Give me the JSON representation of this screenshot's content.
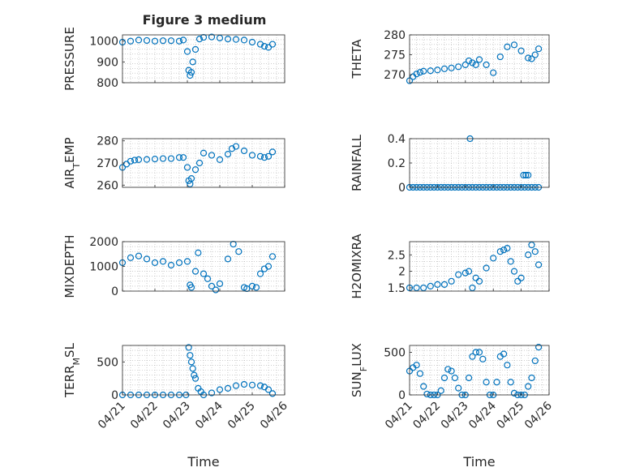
{
  "figure": {
    "title": "Figure 3 medium",
    "marker_color": "#0072BD",
    "axis_color": "#262626",
    "grid_color": "#b0b0b0"
  },
  "chart_data": [
    {
      "id": "pressure",
      "type": "scatter",
      "marker": "circle-open",
      "ylabel_parts": [
        "PRESSURE"
      ],
      "xlabel": "",
      "ylim": [
        800,
        1030
      ],
      "yticks": [
        800,
        900,
        1000
      ],
      "show_xticklabels": false,
      "title": "Figure 3 medium",
      "x": [
        "04/21 00:00",
        "04/21 06:00",
        "04/21 12:00",
        "04/21 18:00",
        "04/22 00:00",
        "04/22 06:00",
        "04/22 12:00",
        "04/22 18:00",
        "04/22 21:00",
        "04/23 00:00",
        "04/23 01:00",
        "04/23 02:00",
        "04/23 03:00",
        "04/23 04:00",
        "04/23 06:00",
        "04/23 09:00",
        "04/23 12:00",
        "04/23 18:00",
        "04/24 00:00",
        "04/24 06:00",
        "04/24 12:00",
        "04/24 18:00",
        "04/25 00:00",
        "04/25 06:00",
        "04/25 09:00",
        "04/25 12:00",
        "04/25 15:00"
      ],
      "y": [
        995,
        1000,
        1005,
        1003,
        1000,
        1002,
        1002,
        1000,
        1005,
        950,
        860,
        835,
        850,
        900,
        960,
        1010,
        1018,
        1020,
        1015,
        1010,
        1008,
        1005,
        995,
        985,
        975,
        970,
        985
      ]
    },
    {
      "id": "theta",
      "type": "scatter",
      "marker": "circle-open",
      "ylabel_parts": [
        "THETA"
      ],
      "xlabel": "",
      "ylim": [
        268,
        280
      ],
      "yticks": [
        270,
        275,
        280
      ],
      "show_xticklabels": false,
      "x": [
        "04/21 00:00",
        "04/21 03:00",
        "04/21 06:00",
        "04/21 09:00",
        "04/21 12:00",
        "04/21 18:00",
        "04/22 00:00",
        "04/22 06:00",
        "04/22 12:00",
        "04/22 18:00",
        "04/23 00:00",
        "04/23 03:00",
        "04/23 06:00",
        "04/23 09:00",
        "04/23 12:00",
        "04/23 18:00",
        "04/24 00:00",
        "04/24 06:00",
        "04/24 12:00",
        "04/24 18:00",
        "04/25 00:00",
        "04/25 06:00",
        "04/25 09:00",
        "04/25 12:00",
        "04/25 15:00"
      ],
      "y": [
        268.5,
        269.5,
        270.2,
        270.6,
        270.9,
        271.0,
        271.2,
        271.5,
        271.7,
        272.0,
        272.5,
        273.5,
        273.0,
        272.5,
        273.8,
        272.5,
        270.5,
        274.5,
        277.0,
        277.5,
        276.0,
        274.2,
        274.0,
        275.0,
        276.5
      ]
    },
    {
      "id": "air_temp",
      "type": "scatter",
      "marker": "circle-open",
      "ylabel_parts": [
        "AIR",
        "T",
        "EMP"
      ],
      "xlabel": "",
      "ylim": [
        259,
        281
      ],
      "yticks": [
        260,
        270,
        280
      ],
      "show_xticklabels": false,
      "x": [
        "04/21 00:00",
        "04/21 03:00",
        "04/21 06:00",
        "04/21 09:00",
        "04/21 12:00",
        "04/21 18:00",
        "04/22 00:00",
        "04/22 06:00",
        "04/22 12:00",
        "04/22 18:00",
        "04/22 21:00",
        "04/23 00:00",
        "04/23 01:00",
        "04/23 02:00",
        "04/23 03:00",
        "04/23 06:00",
        "04/23 09:00",
        "04/23 12:00",
        "04/23 18:00",
        "04/24 00:00",
        "04/24 06:00",
        "04/24 09:00",
        "04/24 12:00",
        "04/24 18:00",
        "04/25 00:00",
        "04/25 06:00",
        "04/25 09:00",
        "04/25 12:00",
        "04/25 15:00"
      ],
      "y": [
        268,
        269.5,
        270.8,
        271.3,
        271.5,
        271.6,
        271.8,
        272.0,
        272.0,
        272.5,
        272.5,
        268,
        262,
        260.5,
        263,
        267,
        270,
        274.5,
        273.5,
        271.5,
        274.0,
        276.5,
        277.5,
        275.5,
        273.5,
        273.0,
        272.5,
        273.0,
        275.0
      ]
    },
    {
      "id": "rainfall",
      "type": "scatter",
      "marker": "circle-open",
      "ylabel_parts": [
        "RAINFALL"
      ],
      "xlabel": "",
      "ylim": [
        0,
        0.4
      ],
      "yticks": [
        0,
        0.2,
        0.4
      ],
      "show_xticklabels": false,
      "x": [
        "04/21 00:00",
        "04/21 03:00",
        "04/21 06:00",
        "04/21 09:00",
        "04/21 12:00",
        "04/21 15:00",
        "04/21 18:00",
        "04/21 21:00",
        "04/22 00:00",
        "04/22 03:00",
        "04/22 06:00",
        "04/22 09:00",
        "04/22 12:00",
        "04/22 15:00",
        "04/22 18:00",
        "04/22 21:00",
        "04/23 00:00",
        "04/23 03:00",
        "04/23 06:00",
        "04/23 09:00",
        "04/23 12:00",
        "04/23 15:00",
        "04/23 18:00",
        "04/23 21:00",
        "04/24 00:00",
        "04/24 03:00",
        "04/24 06:00",
        "04/24 09:00",
        "04/24 12:00",
        "04/24 15:00",
        "04/24 18:00",
        "04/24 21:00",
        "04/25 00:00",
        "04/25 03:00",
        "04/25 06:00",
        "04/25 09:00",
        "04/25 12:00",
        "04/25 15:00",
        "04/23 04:00",
        "04/25 02:00",
        "04/25 04:00",
        "04/25 06:00"
      ],
      "y": [
        0,
        0,
        0,
        0,
        0,
        0,
        0,
        0,
        0,
        0,
        0,
        0,
        0,
        0,
        0,
        0,
        0,
        0,
        0,
        0,
        0,
        0,
        0,
        0,
        0,
        0,
        0,
        0,
        0,
        0,
        0,
        0,
        0,
        0,
        0,
        0,
        0,
        0,
        0.4,
        0.1,
        0.1,
        0.1
      ]
    },
    {
      "id": "mixdepth",
      "type": "scatter",
      "marker": "circle-open",
      "ylabel_parts": [
        "MIXDEPTH"
      ],
      "xlabel": "",
      "ylim": [
        0,
        2000
      ],
      "yticks": [
        0,
        1000,
        2000
      ],
      "show_xticklabels": false,
      "x": [
        "04/21 00:00",
        "04/21 06:00",
        "04/21 12:00",
        "04/21 18:00",
        "04/22 00:00",
        "04/22 06:00",
        "04/22 12:00",
        "04/22 18:00",
        "04/23 00:00",
        "04/23 02:00",
        "04/23 03:00",
        "04/23 06:00",
        "04/23 08:00",
        "04/23 12:00",
        "04/23 15:00",
        "04/23 18:00",
        "04/23 21:00",
        "04/24 00:00",
        "04/24 06:00",
        "04/24 10:00",
        "04/24 14:00",
        "04/24 18:00",
        "04/24 20:00",
        "04/25 00:00",
        "04/25 03:00",
        "04/25 06:00",
        "04/25 09:00",
        "04/25 12:00",
        "04/25 15:00"
      ],
      "y": [
        1150,
        1350,
        1420,
        1300,
        1150,
        1200,
        1050,
        1150,
        1200,
        250,
        150,
        800,
        1550,
        700,
        500,
        200,
        50,
        300,
        1300,
        1900,
        1600,
        150,
        100,
        200,
        150,
        700,
        900,
        1000,
        1400
      ]
    },
    {
      "id": "h2omixra",
      "type": "scatter",
      "marker": "circle-open",
      "ylabel_parts": [
        "H2OMIXRA"
      ],
      "xlabel": "",
      "ylim": [
        1.4,
        2.9
      ],
      "yticks": [
        1.5,
        2,
        2.5
      ],
      "show_xticklabels": false,
      "x": [
        "04/21 00:00",
        "04/21 06:00",
        "04/21 12:00",
        "04/21 18:00",
        "04/22 00:00",
        "04/22 06:00",
        "04/22 12:00",
        "04/22 18:00",
        "04/23 00:00",
        "04/23 03:00",
        "04/23 06:00",
        "04/23 09:00",
        "04/23 12:00",
        "04/23 18:00",
        "04/24 00:00",
        "04/24 06:00",
        "04/24 09:00",
        "04/24 12:00",
        "04/24 15:00",
        "04/24 18:00",
        "04/24 21:00",
        "04/25 00:00",
        "04/25 06:00",
        "04/25 09:00",
        "04/25 12:00",
        "04/25 15:00"
      ],
      "y": [
        1.5,
        1.5,
        1.5,
        1.55,
        1.6,
        1.6,
        1.7,
        1.9,
        1.95,
        2.0,
        1.5,
        1.8,
        1.7,
        2.1,
        2.4,
        2.6,
        2.65,
        2.7,
        2.3,
        2.0,
        1.7,
        1.8,
        2.5,
        2.8,
        2.6,
        2.2
      ]
    },
    {
      "id": "terr_msl",
      "type": "scatter",
      "marker": "circle-open",
      "ylabel_parts": [
        "TERR",
        "M",
        "SL"
      ],
      "xlabel": "Time",
      "ylim": [
        0,
        750
      ],
      "yticks": [
        0,
        500
      ],
      "show_xticklabels": true,
      "xticklabels": [
        "04/21",
        "04/22",
        "04/23",
        "04/24",
        "04/25",
        "04/26"
      ],
      "x": [
        "04/21 00:00",
        "04/21 06:00",
        "04/21 12:00",
        "04/21 18:00",
        "04/22 00:00",
        "04/22 06:00",
        "04/22 12:00",
        "04/22 18:00",
        "04/22 23:00",
        "04/23 01:00",
        "04/23 02:00",
        "04/23 03:00",
        "04/23 04:00",
        "04/23 05:00",
        "04/23 06:00",
        "04/23 08:00",
        "04/23 10:00",
        "04/23 12:00",
        "04/23 18:00",
        "04/24 00:00",
        "04/24 06:00",
        "04/24 12:00",
        "04/24 18:00",
        "04/25 00:00",
        "04/25 06:00",
        "04/25 09:00",
        "04/25 12:00",
        "04/25 15:00"
      ],
      "y": [
        0,
        0,
        0,
        0,
        0,
        0,
        0,
        0,
        0,
        720,
        600,
        500,
        400,
        300,
        250,
        100,
        50,
        0,
        30,
        80,
        100,
        140,
        160,
        150,
        140,
        120,
        80,
        20
      ]
    },
    {
      "id": "sun_flux",
      "type": "scatter",
      "marker": "circle-open",
      "ylabel_parts": [
        "SUN",
        "F",
        "LUX"
      ],
      "xlabel": "Time",
      "ylim": [
        0,
        580
      ],
      "yticks": [
        0,
        500
      ],
      "show_xticklabels": true,
      "xticklabels": [
        "04/21",
        "04/22",
        "04/23",
        "04/24",
        "04/25",
        "04/26"
      ],
      "x": [
        "04/21 00:00",
        "04/21 03:00",
        "04/21 06:00",
        "04/21 09:00",
        "04/21 12:00",
        "04/21 15:00",
        "04/21 18:00",
        "04/21 21:00",
        "04/22 00:00",
        "04/22 03:00",
        "04/22 06:00",
        "04/22 09:00",
        "04/22 12:00",
        "04/22 15:00",
        "04/22 18:00",
        "04/22 21:00",
        "04/23 00:00",
        "04/23 03:00",
        "04/23 06:00",
        "04/23 09:00",
        "04/23 12:00",
        "04/23 15:00",
        "04/23 18:00",
        "04/23 21:00",
        "04/24 00:00",
        "04/24 03:00",
        "04/24 06:00",
        "04/24 09:00",
        "04/24 12:00",
        "04/24 15:00",
        "04/24 18:00",
        "04/24 21:00",
        "04/25 00:00",
        "04/25 03:00",
        "04/25 06:00",
        "04/25 09:00",
        "04/25 12:00",
        "04/25 15:00"
      ],
      "y": [
        280,
        320,
        350,
        250,
        100,
        10,
        0,
        0,
        0,
        50,
        200,
        300,
        280,
        200,
        80,
        0,
        0,
        200,
        450,
        500,
        500,
        420,
        150,
        0,
        0,
        150,
        450,
        480,
        350,
        150,
        20,
        0,
        0,
        0,
        100,
        200,
        400,
        560
      ]
    }
  ]
}
